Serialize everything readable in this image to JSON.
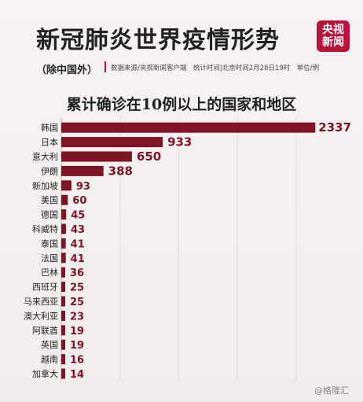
{
  "header": {
    "title": "新冠肺炎世界疫情形势",
    "logo_line1": "央视",
    "logo_line2": "新闻",
    "subtitle": "（除中国外）",
    "source_note": "数据来源/央视新闻客户端　统计时间|北京时间2月28日19时　单位/例"
  },
  "watermark": "@格隆汇",
  "colors": {
    "bar": "#7e1326",
    "value_text": "#7e1326",
    "accent": "#b8123a"
  },
  "chart_data": {
    "type": "bar",
    "orientation": "horizontal",
    "title": "累计确诊在10例以上的国家和地区",
    "categories": [
      "韩国",
      "日本",
      "意大利",
      "伊朗",
      "新加坡",
      "美国",
      "德国",
      "科威特",
      "泰国",
      "法国",
      "巴林",
      "西班牙",
      "马来西亚",
      "澳大利亚",
      "阿联酋",
      "英国",
      "越南",
      "加拿大"
    ],
    "values": [
      2337,
      933,
      650,
      388,
      93,
      60,
      45,
      43,
      41,
      41,
      36,
      25,
      25,
      23,
      19,
      19,
      16,
      14
    ],
    "xlim": [
      0,
      2400
    ],
    "grid": true
  }
}
